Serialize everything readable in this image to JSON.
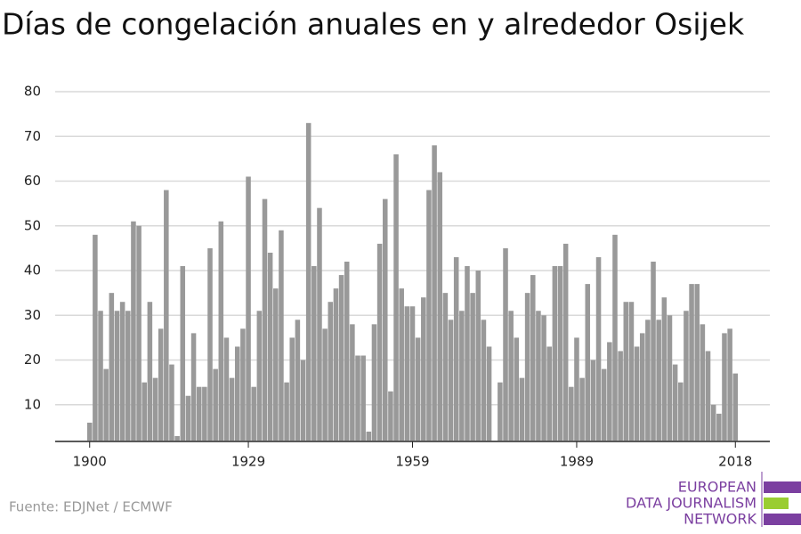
{
  "chart_data": {
    "type": "bar",
    "title": "Días de congelación anuales en y alrededor Osijek",
    "source": "Fuente: EDJNet / ECMWF",
    "logo": [
      "EUROPEAN",
      "DATA JOURNALISM",
      "NETWORK"
    ],
    "color": "#999999",
    "x": [
      1900,
      1901,
      1902,
      1903,
      1904,
      1905,
      1906,
      1907,
      1908,
      1909,
      1910,
      1911,
      1912,
      1913,
      1914,
      1915,
      1916,
      1917,
      1918,
      1919,
      1920,
      1921,
      1922,
      1923,
      1924,
      1925,
      1926,
      1927,
      1928,
      1929,
      1930,
      1931,
      1932,
      1933,
      1934,
      1935,
      1936,
      1937,
      1938,
      1939,
      1940,
      1941,
      1942,
      1943,
      1944,
      1945,
      1946,
      1947,
      1948,
      1949,
      1950,
      1951,
      1952,
      1953,
      1954,
      1955,
      1956,
      1957,
      1958,
      1959,
      1960,
      1961,
      1962,
      1963,
      1964,
      1965,
      1966,
      1967,
      1968,
      1969,
      1970,
      1971,
      1972,
      1973,
      1974,
      1975,
      1976,
      1977,
      1978,
      1979,
      1980,
      1981,
      1982,
      1983,
      1984,
      1985,
      1986,
      1987,
      1988,
      1989,
      1990,
      1991,
      1992,
      1993,
      1994,
      1995,
      1996,
      1997,
      1998,
      1999,
      2000,
      2001,
      2002,
      2003,
      2004,
      2005,
      2006,
      2007,
      2008,
      2009,
      2010,
      2011,
      2012,
      2013,
      2014,
      2015,
      2016,
      2017,
      2018
    ],
    "values": [
      6,
      48,
      31,
      18,
      35,
      31,
      33,
      31,
      51,
      50,
      15,
      33,
      16,
      27,
      58,
      19,
      3,
      41,
      12,
      26,
      14,
      14,
      45,
      18,
      51,
      25,
      16,
      23,
      27,
      61,
      14,
      31,
      56,
      44,
      36,
      49,
      15,
      25,
      29,
      20,
      73,
      41,
      54,
      27,
      33,
      36,
      39,
      42,
      28,
      21,
      21,
      4,
      28,
      46,
      56,
      13,
      66,
      36,
      32,
      32,
      25,
      34,
      58,
      68,
      62,
      35,
      29,
      43,
      31,
      41,
      35,
      40,
      29,
      23,
      2,
      15,
      45,
      31,
      25,
      16,
      35,
      39,
      31,
      30,
      23,
      41,
      41,
      46,
      14,
      25,
      16,
      37,
      20,
      43,
      18,
      24,
      48,
      22,
      33,
      33,
      23,
      26,
      29,
      42,
      29,
      34,
      30,
      19,
      15,
      31,
      37,
      37,
      28,
      22,
      10,
      8,
      26,
      27,
      17
    ],
    "xlim": [
      1893.7,
      2024.3
    ],
    "xticks": [
      1900,
      1929,
      1959,
      1989,
      2018
    ],
    "ylim": [
      2,
      80
    ],
    "yticks": [
      10,
      20,
      30,
      40,
      50,
      60,
      70,
      80
    ],
    "grid": true
  }
}
